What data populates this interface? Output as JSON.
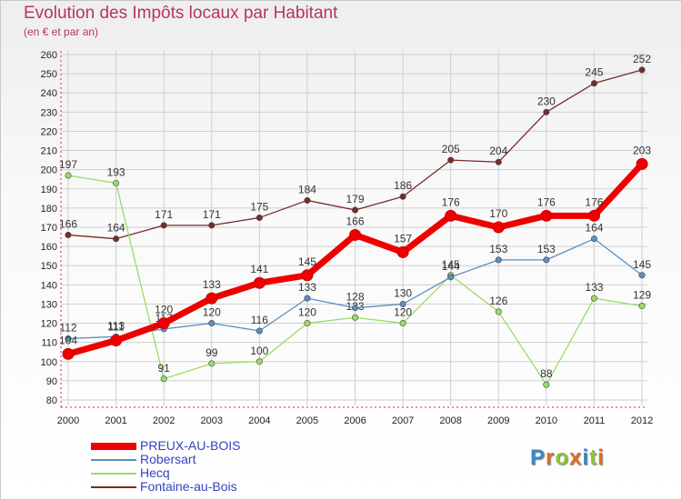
{
  "title": "Evolution des Impôts locaux par Habitant",
  "subtitle": "(en € et par an)",
  "logo_text": "Proxiti",
  "colors": {
    "title": "#b8336a",
    "axis": "#cc2255",
    "grid": "#cfcfcf",
    "legend_text": "#3344bb"
  },
  "chart_data": {
    "type": "line",
    "title": "Evolution des Impôts locaux par Habitant",
    "subtitle": "(en € et par an)",
    "xlabel": "",
    "ylabel": "",
    "x": [
      "2000",
      "2001",
      "2002",
      "2003",
      "2004",
      "2005",
      "2006",
      "2007",
      "2008",
      "2009",
      "2010",
      "2011",
      "2012"
    ],
    "ylim": [
      80,
      260
    ],
    "yticks": [
      80,
      90,
      100,
      110,
      120,
      130,
      140,
      150,
      160,
      170,
      180,
      190,
      200,
      210,
      220,
      230,
      240,
      250,
      260
    ],
    "grid": true,
    "legend_position": "bottom-left",
    "series": [
      {
        "name": "PREUX-AU-BOIS",
        "color": "#ee0000",
        "width": 7,
        "values": [
          104,
          111,
          120,
          133,
          141,
          145,
          166,
          157,
          176,
          170,
          176,
          176,
          203
        ]
      },
      {
        "name": "Robersart",
        "color": "#5b8fc0",
        "width": 1.3,
        "values": [
          112,
          113,
          117,
          120,
          116,
          133,
          128,
          130,
          144,
          153,
          153,
          164,
          145
        ]
      },
      {
        "name": "Hecq",
        "color": "#99dd66",
        "width": 1.3,
        "values": [
          197,
          193,
          91,
          99,
          100,
          120,
          123,
          120,
          145,
          126,
          88,
          133,
          129
        ]
      },
      {
        "name": "Fontaine-au-Bois",
        "color": "#7a2a2a",
        "width": 1.3,
        "values": [
          166,
          164,
          171,
          171,
          175,
          184,
          179,
          186,
          205,
          204,
          230,
          245,
          252
        ]
      }
    ]
  }
}
